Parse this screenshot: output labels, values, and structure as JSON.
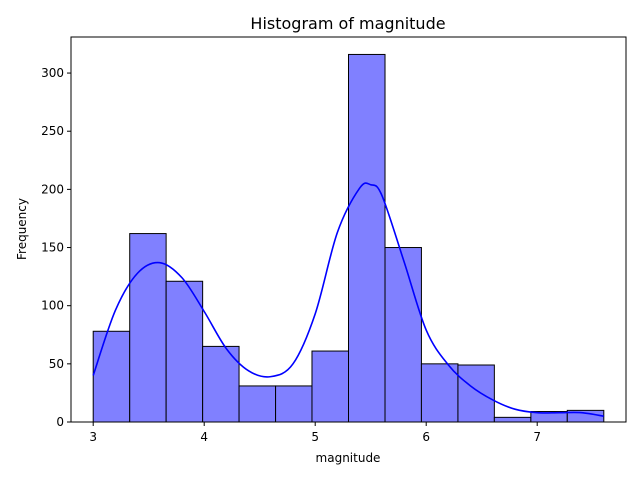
{
  "chart_data": {
    "type": "bar",
    "title": "Histogram of magnitude",
    "xlabel": "magnitude",
    "ylabel": "Frequency",
    "xlim": [
      2.8,
      7.8
    ],
    "ylim": [
      0,
      331
    ],
    "xticks": [
      3,
      4,
      5,
      6,
      7
    ],
    "yticks": [
      0,
      50,
      100,
      150,
      200,
      250,
      300
    ],
    "bin_edges": [
      3.0,
      3.329,
      3.657,
      3.986,
      4.314,
      4.643,
      4.971,
      5.3,
      5.629,
      5.957,
      6.286,
      6.614,
      6.943,
      7.271,
      7.6
    ],
    "values": [
      78,
      162,
      121,
      65,
      31,
      31,
      61,
      316,
      150,
      50,
      49,
      4,
      9,
      10
    ],
    "bar_color": "#8080ff",
    "bar_edge_color": "#000000",
    "kde": {
      "x": [
        3.0,
        3.2,
        3.4,
        3.6,
        3.8,
        4.0,
        4.2,
        4.4,
        4.6,
        4.8,
        5.0,
        5.2,
        5.4,
        5.5,
        5.6,
        5.8,
        6.0,
        6.2,
        6.4,
        6.6,
        6.8,
        7.0,
        7.2,
        7.4,
        7.6
      ],
      "y": [
        40,
        96,
        128,
        137,
        124,
        95,
        63,
        44,
        39,
        50,
        93,
        163,
        201,
        204,
        195,
        138,
        79,
        49,
        31,
        19,
        11,
        8,
        8,
        8,
        5
      ],
      "color": "#0000ff"
    },
    "grid": false,
    "legend": "none"
  }
}
